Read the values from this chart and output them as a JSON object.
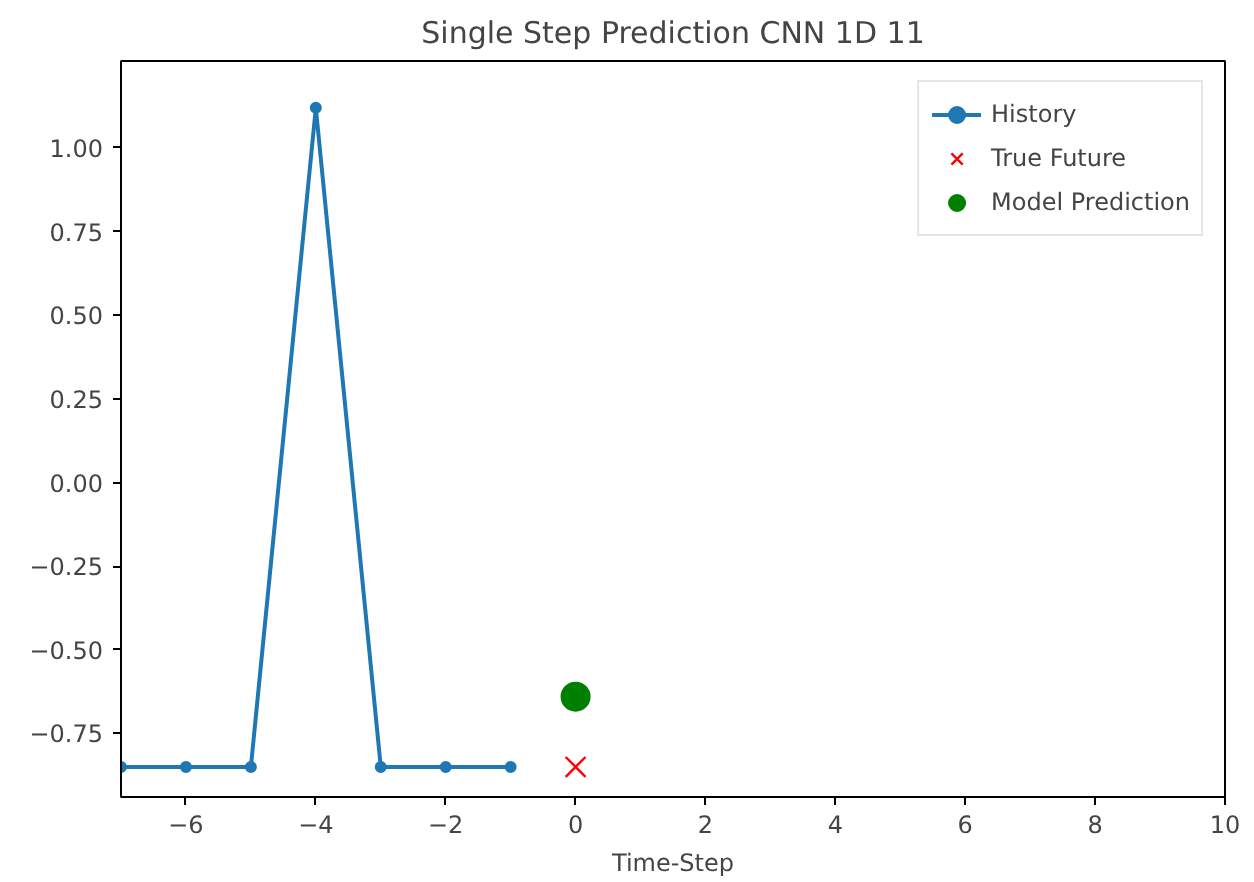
{
  "chart_data": {
    "type": "line",
    "title": "Single Step Prediction CNN 1D 11",
    "xlabel": "Time-Step",
    "series": [
      {
        "name": "History",
        "marker": "circle",
        "color": "#1f77b4",
        "x": [
          -7,
          -6,
          -5,
          -4,
          -3,
          -2,
          -1
        ],
        "values": [
          -0.85,
          -0.85,
          -0.85,
          1.12,
          -0.85,
          -0.85,
          -0.85
        ]
      },
      {
        "name": "True Future",
        "type": "scatter",
        "marker": "cross",
        "color": "#ff0000",
        "x": [
          0
        ],
        "values": [
          -0.85
        ]
      },
      {
        "name": "Model Prediction",
        "type": "scatter",
        "marker": "circle",
        "color": "#008000",
        "x": [
          0
        ],
        "values": [
          -0.64
        ]
      }
    ],
    "xlim": [
      -7,
      10
    ],
    "xticks": [
      {
        "value": -6,
        "label": "−6"
      },
      {
        "value": -4,
        "label": "−4"
      },
      {
        "value": -2,
        "label": "−2"
      },
      0,
      2,
      4,
      6,
      8,
      10
    ],
    "ylim": [
      -0.94,
      1.26
    ],
    "yticks": [
      {
        "value": -0.75,
        "label": "−0.75"
      },
      {
        "value": -0.5,
        "label": "−0.50"
      },
      {
        "value": -0.25,
        "label": "−0.25"
      },
      {
        "value": 0,
        "label": "0.00"
      },
      {
        "value": 0.25,
        "label": "0.25"
      },
      {
        "value": 0.5,
        "label": "0.50"
      },
      {
        "value": 0.75,
        "label": "0.75"
      },
      {
        "value": 1,
        "label": "1.00"
      }
    ],
    "grid": false,
    "legend": "top right"
  }
}
